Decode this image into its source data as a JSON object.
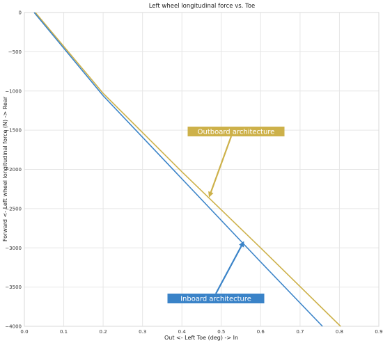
{
  "chart_data": {
    "type": "line",
    "title": "Left wheel longitudinal force vs. Toe",
    "xlabel": "Out <- Left Toe (deg) -> In",
    "ylabel": "Forward <- Left wheel longitudinal force (N) -> Rear",
    "xlim": [
      0,
      0.9
    ],
    "ylim": [
      -4000,
      0
    ],
    "x_ticks": [
      "0.0",
      "0.1",
      "0.2",
      "0.3",
      "0.4",
      "0.5",
      "0.6",
      "0.7",
      "0.8",
      "0.9"
    ],
    "y_ticks": [
      "0",
      "−500",
      "−1000",
      "−1500",
      "−2000",
      "−2500",
      "−3000",
      "−3500",
      "−4000"
    ],
    "grid": true,
    "series": [
      {
        "name": "Inboard architecture",
        "color": "#3a83c8",
        "x": [
          0.025,
          0.2,
          0.4,
          0.6,
          0.757
        ],
        "y": [
          0,
          -1060,
          -2120,
          -3180,
          -4000
        ]
      },
      {
        "name": "Outboard architecture",
        "color": "#cdb14a",
        "x": [
          0.028,
          0.2,
          0.4,
          0.6,
          0.803
        ],
        "y": [
          0,
          -1030,
          -2030,
          -3000,
          -4000
        ]
      }
    ],
    "annotations": [
      {
        "text": "Outboard architecture",
        "color": "#cdb14a",
        "points_to": {
          "x": 0.47,
          "y": -2340
        }
      },
      {
        "text": "Inboard architecture",
        "color": "#3a83c8",
        "points_to": {
          "x": 0.556,
          "y": -2930
        }
      }
    ]
  }
}
